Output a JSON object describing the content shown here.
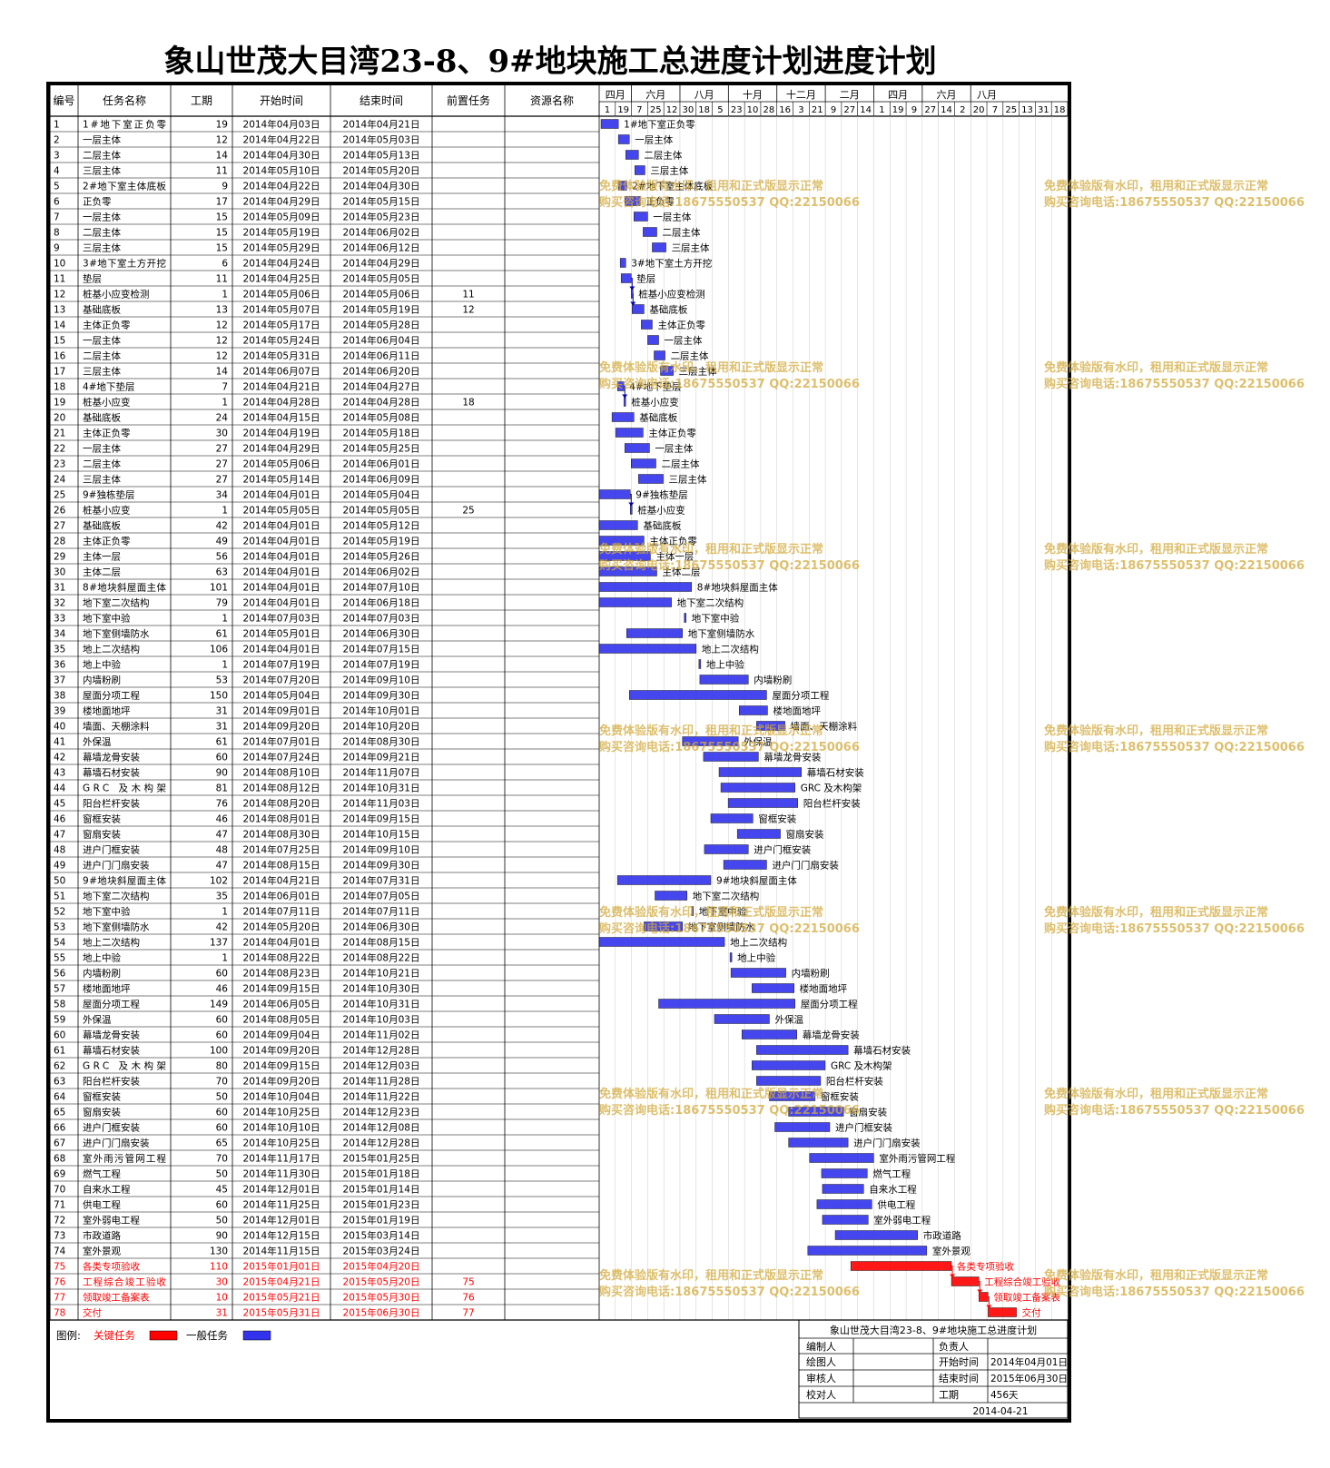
{
  "title": "象山世茂大目湾23-8、9#地块施工总进度计划进度计划",
  "table_headers": [
    "编号",
    "任务名称",
    "工期",
    "开始时间",
    "结束时间",
    "前置任务",
    "资源名称"
  ],
  "timeline": {
    "months": [
      "四月",
      "六月",
      "八月",
      "十月",
      "十二月",
      "二月",
      "四月",
      "六月",
      "八月"
    ],
    "days": [
      "1",
      "19",
      "7",
      "25",
      "12",
      "30",
      "18",
      "5",
      "23",
      "10",
      "28",
      "16",
      "3",
      "21",
      "9",
      "27",
      "14",
      "1",
      "19",
      "9",
      "27",
      "14",
      "2",
      "20",
      "7",
      "25",
      "13",
      "31",
      "18"
    ]
  },
  "chart_data": {
    "type": "gantt",
    "tasks": [
      {
        "id": "1",
        "name": "1#地下室正负零",
        "dur": "19",
        "start": "2014年04月03日",
        "end": "2014年04月21日",
        "pred": "",
        "crit": false
      },
      {
        "id": "2",
        "name": "一层主体",
        "dur": "12",
        "start": "2014年04月22日",
        "end": "2014年05月03日",
        "pred": "",
        "crit": false
      },
      {
        "id": "3",
        "name": "二层主体",
        "dur": "14",
        "start": "2014年04月30日",
        "end": "2014年05月13日",
        "pred": "",
        "crit": false
      },
      {
        "id": "4",
        "name": "三层主体",
        "dur": "11",
        "start": "2014年05月10日",
        "end": "2014年05月20日",
        "pred": "",
        "crit": false
      },
      {
        "id": "5",
        "name": "2#地下室主体底板",
        "dur": "9",
        "start": "2014年04月22日",
        "end": "2014年04月30日",
        "pred": "",
        "crit": false
      },
      {
        "id": "6",
        "name": "正负零",
        "dur": "17",
        "start": "2014年04月29日",
        "end": "2014年05月15日",
        "pred": "",
        "crit": false
      },
      {
        "id": "7",
        "name": "一层主体",
        "dur": "15",
        "start": "2014年05月09日",
        "end": "2014年05月23日",
        "pred": "",
        "crit": false
      },
      {
        "id": "8",
        "name": "二层主体",
        "dur": "15",
        "start": "2014年05月19日",
        "end": "2014年06月02日",
        "pred": "",
        "crit": false
      },
      {
        "id": "9",
        "name": "三层主体",
        "dur": "15",
        "start": "2014年05月29日",
        "end": "2014年06月12日",
        "pred": "",
        "crit": false
      },
      {
        "id": "10",
        "name": "3#地下室土方开挖",
        "dur": "6",
        "start": "2014年04月24日",
        "end": "2014年04月29日",
        "pred": "",
        "crit": false
      },
      {
        "id": "11",
        "name": "垫层",
        "dur": "11",
        "start": "2014年04月25日",
        "end": "2014年05月05日",
        "pred": "",
        "crit": false
      },
      {
        "id": "12",
        "name": "桩基小应变检测",
        "dur": "1",
        "start": "2014年05月06日",
        "end": "2014年05月06日",
        "pred": "11",
        "crit": false
      },
      {
        "id": "13",
        "name": "基础底板",
        "dur": "13",
        "start": "2014年05月07日",
        "end": "2014年05月19日",
        "pred": "12",
        "crit": false
      },
      {
        "id": "14",
        "name": "主体正负零",
        "dur": "12",
        "start": "2014年05月17日",
        "end": "2014年05月28日",
        "pred": "",
        "crit": false
      },
      {
        "id": "15",
        "name": "一层主体",
        "dur": "12",
        "start": "2014年05月24日",
        "end": "2014年06月04日",
        "pred": "",
        "crit": false
      },
      {
        "id": "16",
        "name": "二层主体",
        "dur": "12",
        "start": "2014年05月31日",
        "end": "2014年06月11日",
        "pred": "",
        "crit": false
      },
      {
        "id": "17",
        "name": "三层主体",
        "dur": "14",
        "start": "2014年06月07日",
        "end": "2014年06月20日",
        "pred": "",
        "crit": false
      },
      {
        "id": "18",
        "name": "4#地下垫层",
        "dur": "7",
        "start": "2014年04月21日",
        "end": "2014年04月27日",
        "pred": "",
        "crit": false
      },
      {
        "id": "19",
        "name": "桩基小应变",
        "dur": "1",
        "start": "2014年04月28日",
        "end": "2014年04月28日",
        "pred": "18",
        "crit": false
      },
      {
        "id": "20",
        "name": "基础底板",
        "dur": "24",
        "start": "2014年04月15日",
        "end": "2014年05月08日",
        "pred": "",
        "crit": false
      },
      {
        "id": "21",
        "name": "主体正负零",
        "dur": "30",
        "start": "2014年04月19日",
        "end": "2014年05月18日",
        "pred": "",
        "crit": false
      },
      {
        "id": "22",
        "name": "一层主体",
        "dur": "27",
        "start": "2014年04月29日",
        "end": "2014年05月25日",
        "pred": "",
        "crit": false
      },
      {
        "id": "23",
        "name": "二层主体",
        "dur": "27",
        "start": "2014年05月06日",
        "end": "2014年06月01日",
        "pred": "",
        "crit": false
      },
      {
        "id": "24",
        "name": "三层主体",
        "dur": "27",
        "start": "2014年05月14日",
        "end": "2014年06月09日",
        "pred": "",
        "crit": false
      },
      {
        "id": "25",
        "name": "9#独栋垫层",
        "dur": "34",
        "start": "2014年04月01日",
        "end": "2014年05月04日",
        "pred": "",
        "crit": false
      },
      {
        "id": "26",
        "name": "桩基小应变",
        "dur": "1",
        "start": "2014年05月05日",
        "end": "2014年05月05日",
        "pred": "25",
        "crit": false
      },
      {
        "id": "27",
        "name": "基础底板",
        "dur": "42",
        "start": "2014年04月01日",
        "end": "2014年05月12日",
        "pred": "",
        "crit": false
      },
      {
        "id": "28",
        "name": "主体正负零",
        "dur": "49",
        "start": "2014年04月01日",
        "end": "2014年05月19日",
        "pred": "",
        "crit": false
      },
      {
        "id": "29",
        "name": "主体一层",
        "dur": "56",
        "start": "2014年04月01日",
        "end": "2014年05月26日",
        "pred": "",
        "crit": false
      },
      {
        "id": "30",
        "name": "主体二层",
        "dur": "63",
        "start": "2014年04月01日",
        "end": "2014年06月02日",
        "pred": "",
        "crit": false
      },
      {
        "id": "31",
        "name": "8#地块斜屋面主体",
        "dur": "101",
        "start": "2014年04月01日",
        "end": "2014年07月10日",
        "pred": "",
        "crit": false
      },
      {
        "id": "32",
        "name": "地下室二次结构",
        "dur": "79",
        "start": "2014年04月01日",
        "end": "2014年06月18日",
        "pred": "",
        "crit": false
      },
      {
        "id": "33",
        "name": "地下室中验",
        "dur": "1",
        "start": "2014年07月03日",
        "end": "2014年07月03日",
        "pred": "",
        "crit": false
      },
      {
        "id": "34",
        "name": "地下室侧墙防水",
        "dur": "61",
        "start": "2014年05月01日",
        "end": "2014年06月30日",
        "pred": "",
        "crit": false
      },
      {
        "id": "35",
        "name": "地上二次结构",
        "dur": "106",
        "start": "2014年04月01日",
        "end": "2014年07月15日",
        "pred": "",
        "crit": false
      },
      {
        "id": "36",
        "name": "地上中验",
        "dur": "1",
        "start": "2014年07月19日",
        "end": "2014年07月19日",
        "pred": "",
        "crit": false
      },
      {
        "id": "37",
        "name": "内墙粉刷",
        "dur": "53",
        "start": "2014年07月20日",
        "end": "2014年09月10日",
        "pred": "",
        "crit": false
      },
      {
        "id": "38",
        "name": "屋面分项工程",
        "dur": "150",
        "start": "2014年05月04日",
        "end": "2014年09月30日",
        "pred": "",
        "crit": false
      },
      {
        "id": "39",
        "name": "楼地面地坪",
        "dur": "31",
        "start": "2014年09月01日",
        "end": "2014年10月01日",
        "pred": "",
        "crit": false
      },
      {
        "id": "40",
        "name": "墙面、天棚涂料",
        "dur": "31",
        "start": "2014年09月20日",
        "end": "2014年10月20日",
        "pred": "",
        "crit": false
      },
      {
        "id": "41",
        "name": "外保温",
        "dur": "61",
        "start": "2014年07月01日",
        "end": "2014年08月30日",
        "pred": "",
        "crit": false
      },
      {
        "id": "42",
        "name": "幕墙龙骨安装",
        "dur": "60",
        "start": "2014年07月24日",
        "end": "2014年09月21日",
        "pred": "",
        "crit": false
      },
      {
        "id": "43",
        "name": "幕墙石材安装",
        "dur": "90",
        "start": "2014年08月10日",
        "end": "2014年11月07日",
        "pred": "",
        "crit": false
      },
      {
        "id": "44",
        "name": "GRC 及木构架",
        "dur": "81",
        "start": "2014年08月12日",
        "end": "2014年10月31日",
        "pred": "",
        "crit": false
      },
      {
        "id": "45",
        "name": "阳台栏杆安装",
        "dur": "76",
        "start": "2014年08月20日",
        "end": "2014年11月03日",
        "pred": "",
        "crit": false
      },
      {
        "id": "46",
        "name": "窗框安装",
        "dur": "46",
        "start": "2014年08月01日",
        "end": "2014年09月15日",
        "pred": "",
        "crit": false
      },
      {
        "id": "47",
        "name": "窗扇安装",
        "dur": "47",
        "start": "2014年08月30日",
        "end": "2014年10月15日",
        "pred": "",
        "crit": false
      },
      {
        "id": "48",
        "name": "进户门框安装",
        "dur": "48",
        "start": "2014年07月25日",
        "end": "2014年09月10日",
        "pred": "",
        "crit": false
      },
      {
        "id": "49",
        "name": "进户门门扇安装",
        "dur": "47",
        "start": "2014年08月15日",
        "end": "2014年09月30日",
        "pred": "",
        "crit": false
      },
      {
        "id": "50",
        "name": "9#地块斜屋面主体",
        "dur": "102",
        "start": "2014年04月21日",
        "end": "2014年07月31日",
        "pred": "",
        "crit": false
      },
      {
        "id": "51",
        "name": "地下室二次结构",
        "dur": "35",
        "start": "2014年06月01日",
        "end": "2014年07月05日",
        "pred": "",
        "crit": false
      },
      {
        "id": "52",
        "name": "地下室中验",
        "dur": "1",
        "start": "2014年07月11日",
        "end": "2014年07月11日",
        "pred": "",
        "crit": false
      },
      {
        "id": "53",
        "name": "地下室侧墙防水",
        "dur": "42",
        "start": "2014年05月20日",
        "end": "2014年06月30日",
        "pred": "",
        "crit": false
      },
      {
        "id": "54",
        "name": "地上二次结构",
        "dur": "137",
        "start": "2014年04月01日",
        "end": "2014年08月15日",
        "pred": "",
        "crit": false
      },
      {
        "id": "55",
        "name": "地上中验",
        "dur": "1",
        "start": "2014年08月22日",
        "end": "2014年08月22日",
        "pred": "",
        "crit": false
      },
      {
        "id": "56",
        "name": "内墙粉刷",
        "dur": "60",
        "start": "2014年08月23日",
        "end": "2014年10月21日",
        "pred": "",
        "crit": false
      },
      {
        "id": "57",
        "name": "楼地面地坪",
        "dur": "46",
        "start": "2014年09月15日",
        "end": "2014年10月30日",
        "pred": "",
        "crit": false
      },
      {
        "id": "58",
        "name": "屋面分项工程",
        "dur": "149",
        "start": "2014年06月05日",
        "end": "2014年10月31日",
        "pred": "",
        "crit": false
      },
      {
        "id": "59",
        "name": "外保温",
        "dur": "60",
        "start": "2014年08月05日",
        "end": "2014年10月03日",
        "pred": "",
        "crit": false
      },
      {
        "id": "60",
        "name": "幕墙龙骨安装",
        "dur": "60",
        "start": "2014年09月04日",
        "end": "2014年11月02日",
        "pred": "",
        "crit": false
      },
      {
        "id": "61",
        "name": "幕墙石材安装",
        "dur": "100",
        "start": "2014年09月20日",
        "end": "2014年12月28日",
        "pred": "",
        "crit": false
      },
      {
        "id": "62",
        "name": "GRC 及木构架",
        "dur": "80",
        "start": "2014年09月15日",
        "end": "2014年12月03日",
        "pred": "",
        "crit": false
      },
      {
        "id": "63",
        "name": "阳台栏杆安装",
        "dur": "70",
        "start": "2014年09月20日",
        "end": "2014年11月28日",
        "pred": "",
        "crit": false
      },
      {
        "id": "64",
        "name": "窗框安装",
        "dur": "50",
        "start": "2014年10月04日",
        "end": "2014年11月22日",
        "pred": "",
        "crit": false
      },
      {
        "id": "65",
        "name": "窗扇安装",
        "dur": "60",
        "start": "2014年10月25日",
        "end": "2014年12月23日",
        "pred": "",
        "crit": false
      },
      {
        "id": "66",
        "name": "进户门框安装",
        "dur": "60",
        "start": "2014年10月10日",
        "end": "2014年12月08日",
        "pred": "",
        "crit": false
      },
      {
        "id": "67",
        "name": "进户门门扇安装",
        "dur": "65",
        "start": "2014年10月25日",
        "end": "2014年12月28日",
        "pred": "",
        "crit": false
      },
      {
        "id": "68",
        "name": "室外雨污管网工程",
        "dur": "70",
        "start": "2014年11月17日",
        "end": "2015年01月25日",
        "pred": "",
        "crit": false
      },
      {
        "id": "69",
        "name": "燃气工程",
        "dur": "50",
        "start": "2014年11月30日",
        "end": "2015年01月18日",
        "pred": "",
        "crit": false
      },
      {
        "id": "70",
        "name": "自来水工程",
        "dur": "45",
        "start": "2014年12月01日",
        "end": "2015年01月14日",
        "pred": "",
        "crit": false
      },
      {
        "id": "71",
        "name": "供电工程",
        "dur": "60",
        "start": "2014年11月25日",
        "end": "2015年01月23日",
        "pred": "",
        "crit": false
      },
      {
        "id": "72",
        "name": "室外弱电工程",
        "dur": "50",
        "start": "2014年12月01日",
        "end": "2015年01月19日",
        "pred": "",
        "crit": false
      },
      {
        "id": "73",
        "name": "市政道路",
        "dur": "90",
        "start": "2014年12月15日",
        "end": "2015年03月14日",
        "pred": "",
        "crit": false
      },
      {
        "id": "74",
        "name": "室外景观",
        "dur": "130",
        "start": "2014年11月15日",
        "end": "2015年03月24日",
        "pred": "",
        "crit": false
      },
      {
        "id": "75",
        "name": "各类专项验收",
        "dur": "110",
        "start": "2015年01月01日",
        "end": "2015年04月20日",
        "pred": "",
        "crit": true
      },
      {
        "id": "76",
        "name": "工程综合竣工验收",
        "dur": "30",
        "start": "2015年04月21日",
        "end": "2015年05月20日",
        "pred": "75",
        "crit": true
      },
      {
        "id": "77",
        "name": "领取竣工备案表",
        "dur": "10",
        "start": "2015年05月21日",
        "end": "2015年05月30日",
        "pred": "76",
        "crit": true
      },
      {
        "id": "78",
        "name": "交付",
        "dur": "31",
        "start": "2015年05月31日",
        "end": "2015年06月30日",
        "pred": "77",
        "crit": true
      }
    ]
  },
  "legend": {
    "label": "图例:",
    "critical": "关键任务",
    "general": "一般任务",
    "critical_color": "#ff0000",
    "general_color": "#3333ee"
  },
  "info_box": {
    "title": "象山世茂大目湾23-8、9#地块施工总进度计划",
    "compiler": "编制人",
    "owner": "负责人",
    "drawer": "绘图人",
    "start_label": "开始时间",
    "start_value": "2014年04月01日",
    "reviewer": "审核人",
    "end_label": "结束时间",
    "end_value": "2015年06月30日",
    "checker": "校对人",
    "dur_label": "工期",
    "dur_value": "456天",
    "date": "2014-04-21"
  },
  "watermark": {
    "line1": "免费体验版有水印，租用和正式版显示正常",
    "line2": "购买咨询电话:18675550537 QQ:22150066"
  }
}
